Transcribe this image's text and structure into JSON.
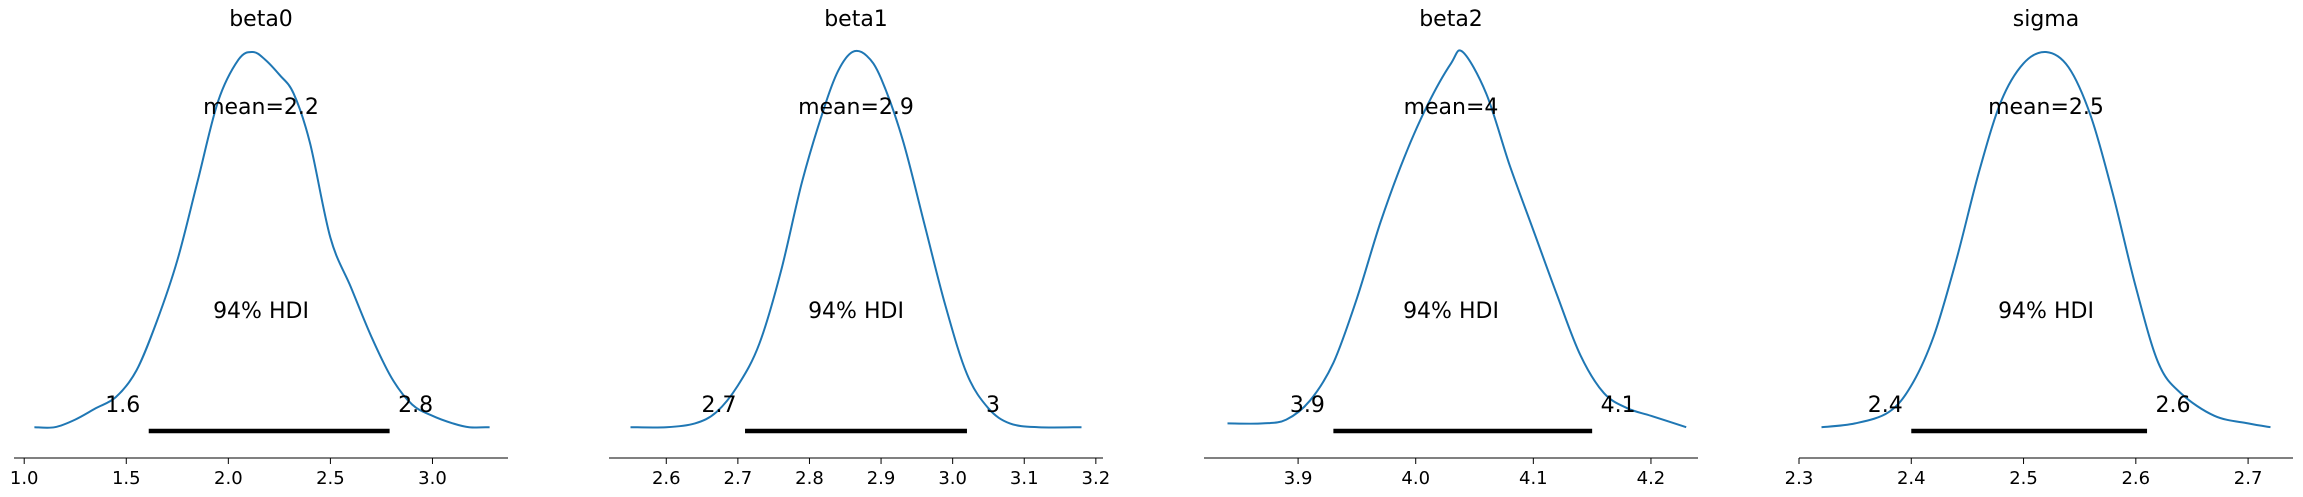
{
  "figure": {
    "background": "#ffffff",
    "line_color": "#1f77b4",
    "hdi_color": "#000000"
  },
  "chart_data": [
    {
      "type": "line",
      "title": "beta0",
      "xlim": [
        0.95,
        3.37
      ],
      "ticks": [
        1.0,
        1.5,
        2.0,
        2.5,
        3.0
      ],
      "tick_labels": [
        "1.0",
        "1.5",
        "2.0",
        "2.5",
        "3.0"
      ],
      "mean_label": "mean=2.2",
      "hdi_label": "94% HDI",
      "hdi": [
        1.61,
        2.79
      ],
      "hdi_low_label": "1.6",
      "hdi_high_label": "2.8",
      "x": [
        1.05,
        1.15,
        1.25,
        1.35,
        1.45,
        1.55,
        1.65,
        1.75,
        1.85,
        1.95,
        2.05,
        2.12,
        2.18,
        2.25,
        2.32,
        2.4,
        2.5,
        2.6,
        2.7,
        2.8,
        2.9,
        3.0,
        3.1,
        3.18,
        3.28
      ],
      "y": [
        0.01,
        0.01,
        0.03,
        0.06,
        0.09,
        0.16,
        0.29,
        0.45,
        0.66,
        0.87,
        0.98,
        1.0,
        0.98,
        0.94,
        0.89,
        0.76,
        0.51,
        0.38,
        0.25,
        0.14,
        0.07,
        0.04,
        0.02,
        0.01,
        0.01
      ]
    },
    {
      "type": "line",
      "title": "beta1",
      "xlim": [
        2.52,
        3.21
      ],
      "ticks": [
        2.6,
        2.7,
        2.8,
        2.9,
        3.0,
        3.1,
        3.2
      ],
      "tick_labels": [
        "2.6",
        "2.7",
        "2.8",
        "2.9",
        "3.0",
        "3.1",
        "3.2"
      ],
      "mean_label": "mean=2.9",
      "hdi_label": "94% HDI",
      "hdi": [
        2.71,
        3.02
      ],
      "hdi_low_label": "2.7",
      "hdi_high_label": "3",
      "x": [
        2.55,
        2.6,
        2.64,
        2.67,
        2.7,
        2.73,
        2.76,
        2.79,
        2.82,
        2.84,
        2.86,
        2.88,
        2.9,
        2.93,
        2.96,
        2.99,
        3.02,
        3.05,
        3.08,
        3.12,
        3.18
      ],
      "y": [
        0.01,
        0.01,
        0.02,
        0.05,
        0.12,
        0.23,
        0.42,
        0.66,
        0.85,
        0.95,
        1.0,
        0.99,
        0.93,
        0.77,
        0.55,
        0.33,
        0.15,
        0.06,
        0.02,
        0.01,
        0.01
      ]
    },
    {
      "type": "line",
      "title": "beta2",
      "xlim": [
        3.82,
        4.24
      ],
      "ticks": [
        3.9,
        4.0,
        4.1,
        4.2
      ],
      "tick_labels": [
        "3.9",
        "4.0",
        "4.1",
        "4.2"
      ],
      "mean_label": "mean=4",
      "hdi_label": "94% HDI",
      "hdi": [
        3.93,
        4.15
      ],
      "hdi_low_label": "3.9",
      "hdi_high_label": "4.1",
      "x": [
        3.84,
        3.87,
        3.89,
        3.91,
        3.93,
        3.95,
        3.97,
        3.99,
        4.01,
        4.03,
        4.04,
        4.06,
        4.08,
        4.1,
        4.12,
        4.14,
        4.16,
        4.18,
        4.2,
        4.23
      ],
      "y": [
        0.02,
        0.02,
        0.03,
        0.08,
        0.18,
        0.35,
        0.55,
        0.72,
        0.86,
        0.97,
        1.0,
        0.89,
        0.7,
        0.53,
        0.36,
        0.2,
        0.1,
        0.06,
        0.04,
        0.01
      ]
    },
    {
      "type": "line",
      "title": "sigma",
      "xlim": [
        2.3,
        2.74
      ],
      "ticks": [
        2.3,
        2.4,
        2.5,
        2.6,
        2.7
      ],
      "tick_labels": [
        "2.3",
        "2.4",
        "2.5",
        "2.6",
        "2.7"
      ],
      "mean_label": "mean=2.5",
      "hdi_label": "94% HDI",
      "hdi": [
        2.4,
        2.61
      ],
      "hdi_low_label": "2.4",
      "hdi_high_label": "2.6",
      "x": [
        2.32,
        2.35,
        2.38,
        2.4,
        2.42,
        2.44,
        2.46,
        2.48,
        2.5,
        2.52,
        2.54,
        2.56,
        2.58,
        2.6,
        2.62,
        2.64,
        2.67,
        2.7,
        2.72
      ],
      "y": [
        0.01,
        0.02,
        0.05,
        0.12,
        0.25,
        0.45,
        0.68,
        0.87,
        0.97,
        1.0,
        0.96,
        0.83,
        0.62,
        0.38,
        0.18,
        0.1,
        0.04,
        0.02,
        0.01
      ]
    }
  ]
}
